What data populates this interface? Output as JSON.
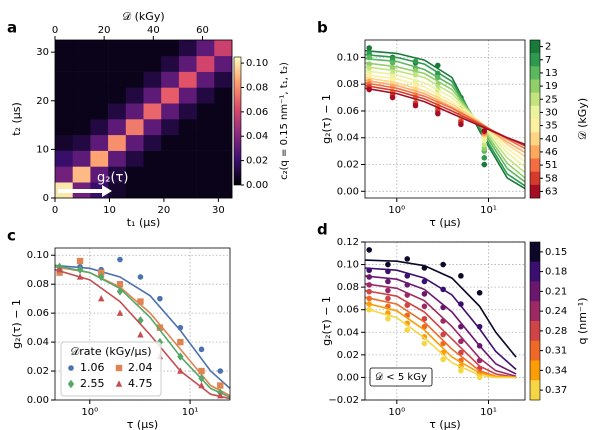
{
  "chart_data": [
    {
      "type": "heatmap",
      "panel_label": "a",
      "xlabel": "t₁ (μs)",
      "ylabel": "t₂ (μs)",
      "x2label": "𝒟 (kGy)",
      "clabel": "c₂(q = 0.15 nm⁻¹, t₁, t₂)",
      "annotation": "g₂(τ)",
      "xlim": [
        0,
        32.5
      ],
      "ylim": [
        0,
        32.5
      ],
      "xticks": [
        0,
        10,
        20,
        30
      ],
      "yticks": [
        0,
        10,
        20,
        30
      ],
      "x2lim": [
        0,
        72
      ],
      "x2ticks": [
        0,
        20,
        40,
        60
      ],
      "clim": [
        0,
        0.105
      ],
      "cticks": [
        {
          "value": 0,
          "label": "0.00"
        },
        0.02,
        0.04,
        0.06,
        0.08,
        {
          "value": 0.1,
          "label": "0.10"
        }
      ],
      "colormap": [
        "#000004",
        "#3b0f70",
        "#8c2981",
        "#de4968",
        "#fe9f6d",
        "#fcfdbf"
      ],
      "z": [
        [
          0.1,
          0.035,
          0.02,
          0.008,
          0.004,
          0.004,
          0.004,
          0.004,
          0.004,
          0.004
        ],
        [
          0.035,
          0.09,
          0.03,
          0.012,
          0.004,
          0.004,
          0.004,
          0.004,
          0.004,
          0.004
        ],
        [
          0.02,
          0.03,
          0.085,
          0.03,
          0.012,
          0.004,
          0.004,
          0.004,
          0.004,
          0.004
        ],
        [
          0.008,
          0.012,
          0.03,
          0.08,
          0.03,
          0.012,
          0.004,
          0.004,
          0.004,
          0.004
        ],
        [
          0.004,
          0.004,
          0.012,
          0.03,
          0.075,
          0.03,
          0.012,
          0.004,
          0.004,
          0.004
        ],
        [
          0.004,
          0.004,
          0.004,
          0.012,
          0.03,
          0.07,
          0.03,
          0.012,
          0.004,
          0.004
        ],
        [
          0.004,
          0.004,
          0.004,
          0.004,
          0.012,
          0.03,
          0.068,
          0.03,
          0.012,
          0.004
        ],
        [
          0.004,
          0.004,
          0.004,
          0.004,
          0.004,
          0.012,
          0.03,
          0.065,
          0.03,
          0.012
        ],
        [
          0.004,
          0.004,
          0.004,
          0.004,
          0.004,
          0.004,
          0.012,
          0.03,
          0.06,
          0.03
        ],
        [
          0.004,
          0.004,
          0.004,
          0.004,
          0.004,
          0.004,
          0.004,
          0.012,
          0.03,
          0.058
        ]
      ]
    },
    {
      "type": "scatter",
      "panel_label": "b",
      "xlabel": "τ (μs)",
      "ylabel": "g₂(τ) − 1",
      "clabel": "𝒟 (kGy)",
      "log_x": true,
      "grid": true,
      "xlim": [
        0.45,
        25
      ],
      "xticks": [
        {
          "value": 1,
          "label": "10⁰"
        },
        {
          "value": 10,
          "label": "10¹"
        }
      ],
      "ylim": [
        -0.005,
        0.113
      ],
      "yticks": [
        {
          "value": 0,
          "label": "0.00"
        },
        0.02,
        0.04,
        0.06,
        0.08,
        {
          "value": 0.1,
          "label": "0.10"
        }
      ],
      "x": [
        0.5,
        0.9,
        1.6,
        2.8,
        5,
        9
      ],
      "fit_x": [
        0.45,
        1,
        2,
        4,
        8,
        16,
        25
      ],
      "series": [
        {
          "name": "2",
          "color": "#1a7a3a",
          "values": [
            0.107,
            0.1,
            0.096,
            0.094,
            0.07,
            0.02
          ],
          "fit": [
            0.105,
            0.103,
            0.098,
            0.085,
            0.045,
            0.01,
            0.002
          ]
        },
        {
          "name": "7",
          "color": "#2e9a4f",
          "values": [
            0.103,
            0.098,
            0.097,
            0.088,
            0.06,
            0.025
          ],
          "fit": [
            0.102,
            0.1,
            0.095,
            0.082,
            0.047,
            0.013,
            0.004
          ]
        },
        {
          "name": "13",
          "color": "#5cb85c",
          "values": [
            0.1,
            0.096,
            0.092,
            0.085,
            0.058,
            0.03
          ],
          "fit": [
            0.099,
            0.097,
            0.091,
            0.079,
            0.049,
            0.017,
            0.007
          ]
        },
        {
          "name": "19",
          "color": "#92cf6a",
          "values": [
            0.095,
            0.092,
            0.09,
            0.08,
            0.062,
            0.032
          ],
          "fit": [
            0.096,
            0.093,
            0.088,
            0.076,
            0.05,
            0.021,
            0.01
          ]
        },
        {
          "name": "25",
          "color": "#c3e37f",
          "values": [
            0.092,
            0.088,
            0.087,
            0.076,
            0.06,
            0.035
          ],
          "fit": [
            0.093,
            0.09,
            0.085,
            0.073,
            0.051,
            0.025,
            0.014
          ]
        },
        {
          "name": "30",
          "color": "#e9f3a0",
          "values": [
            0.088,
            0.085,
            0.082,
            0.072,
            0.056,
            0.038
          ],
          "fit": [
            0.09,
            0.087,
            0.081,
            0.07,
            0.052,
            0.029,
            0.018
          ]
        },
        {
          "name": "35",
          "color": "#fdf0a0",
          "values": [
            0.086,
            0.083,
            0.078,
            0.07,
            0.055,
            0.04
          ],
          "fit": [
            0.087,
            0.084,
            0.078,
            0.067,
            0.052,
            0.032,
            0.022
          ]
        },
        {
          "name": "40",
          "color": "#fed583",
          "values": [
            0.083,
            0.08,
            0.076,
            0.066,
            0.055,
            0.042
          ],
          "fit": [
            0.085,
            0.081,
            0.075,
            0.065,
            0.052,
            0.035,
            0.026
          ]
        },
        {
          "name": "46",
          "color": "#fca95e",
          "values": [
            0.082,
            0.078,
            0.072,
            0.064,
            0.053,
            0.043
          ],
          "fit": [
            0.083,
            0.079,
            0.073,
            0.063,
            0.051,
            0.037,
            0.029
          ]
        },
        {
          "name": "51",
          "color": "#f26d41",
          "values": [
            0.08,
            0.074,
            0.07,
            0.062,
            0.052,
            0.044
          ],
          "fit": [
            0.081,
            0.077,
            0.071,
            0.062,
            0.051,
            0.039,
            0.032
          ]
        },
        {
          "name": "58",
          "color": "#d63a2c",
          "values": [
            0.078,
            0.072,
            0.066,
            0.06,
            0.052,
            0.045
          ],
          "fit": [
            0.079,
            0.075,
            0.069,
            0.06,
            0.05,
            0.04,
            0.034
          ]
        },
        {
          "name": "63",
          "color": "#a50f26",
          "values": [
            0.076,
            0.07,
            0.064,
            0.058,
            0.05,
            0.045
          ],
          "fit": [
            0.077,
            0.073,
            0.067,
            0.058,
            0.049,
            0.04,
            0.035
          ]
        }
      ]
    },
    {
      "type": "scatter",
      "panel_label": "c",
      "xlabel": "τ (μs)",
      "ylabel": "g₂(τ) − 1",
      "log_x": true,
      "grid": true,
      "legend": "lower left",
      "legend_title": "𝒟rate (kGy/μs)",
      "xlim": [
        0.45,
        25
      ],
      "xticks": [
        {
          "value": 1,
          "label": "10⁰"
        },
        {
          "value": 10,
          "label": "10¹"
        }
      ],
      "ylim": [
        0,
        0.105
      ],
      "yticks": [
        {
          "value": 0,
          "label": "0.00"
        },
        0.02,
        0.04,
        0.06,
        0.08,
        {
          "value": 0.1,
          "label": "0.10"
        }
      ],
      "x": [
        0.5,
        0.8,
        1.3,
        2,
        3.2,
        5,
        8,
        13,
        20
      ],
      "fit_x": [
        0.45,
        1,
        2,
        4,
        8,
        16,
        25
      ],
      "series": [
        {
          "name": "1.06",
          "color": "#4c72b0",
          "marker": "o",
          "values": [
            0.09,
            0.092,
            0.09,
            0.097,
            0.085,
            0.07,
            0.05,
            0.035,
            0.02
          ],
          "fit": [
            0.093,
            0.091,
            0.085,
            0.072,
            0.048,
            0.02,
            0.008
          ]
        },
        {
          "name": "2.04",
          "color": "#dd8452",
          "marker": "s",
          "values": [
            0.088,
            0.096,
            0.088,
            0.08,
            0.068,
            0.05,
            0.04,
            0.02,
            0.01
          ],
          "fit": [
            0.092,
            0.088,
            0.078,
            0.06,
            0.035,
            0.01,
            0.003
          ]
        },
        {
          "name": "2.55",
          "color": "#55a868",
          "marker": "D",
          "values": [
            0.092,
            0.09,
            0.085,
            0.075,
            0.055,
            0.04,
            0.03,
            0.015,
            0.005
          ],
          "fit": [
            0.093,
            0.088,
            0.077,
            0.057,
            0.03,
            0.008,
            0.002
          ]
        },
        {
          "name": "4.75",
          "color": "#c44e52",
          "marker": "^",
          "values": [
            0.09,
            0.085,
            0.07,
            0.06,
            0.045,
            0.03,
            0.02,
            0.01,
            0.003
          ],
          "fit": [
            0.09,
            0.083,
            0.068,
            0.045,
            0.02,
            0.004,
            0.001
          ]
        }
      ]
    },
    {
      "type": "scatter",
      "panel_label": "d",
      "xlabel": "τ (μs)",
      "ylabel": "g₂(τ) − 1",
      "clabel": "q (nm⁻¹)",
      "annotation": "𝒟 < 5 kGy",
      "log_x": true,
      "grid": true,
      "xlim": [
        0.45,
        25
      ],
      "xticks": [
        {
          "value": 1,
          "label": "10⁰"
        },
        {
          "value": 10,
          "label": "10¹"
        }
      ],
      "ylim": [
        -0.02,
        0.12
      ],
      "yticks": [
        {
          "value": -0.02,
          "label": "−0.02"
        },
        {
          "value": 0,
          "label": "0.00"
        },
        0.02,
        0.04,
        0.06,
        0.08,
        {
          "value": 0.1,
          "label": "0.10"
        },
        0.12
      ],
      "x": [
        0.5,
        0.8,
        1.3,
        2,
        3.2,
        5,
        8
      ],
      "fit_x": [
        0.45,
        1,
        2,
        4,
        8,
        12,
        20
      ],
      "series": [
        {
          "name": "0.15",
          "color": "#0d0829",
          "values": [
            0.113,
            0.1,
            0.105,
            0.097,
            0.1,
            0.09,
            0.075
          ],
          "fit": [
            0.104,
            0.103,
            0.099,
            0.088,
            0.063,
            0.04,
            0.018
          ]
        },
        {
          "name": "0.18",
          "color": "#3b0f6f",
          "values": [
            0.095,
            0.094,
            0.09,
            0.085,
            0.078,
            0.065,
            0.045
          ],
          "fit": [
            0.097,
            0.095,
            0.088,
            0.073,
            0.043,
            0.023,
            0.007
          ]
        },
        {
          "name": "0.21",
          "color": "#6a176e",
          "values": [
            0.089,
            0.085,
            0.082,
            0.074,
            0.062,
            0.045,
            0.028
          ],
          "fit": [
            0.09,
            0.087,
            0.078,
            0.058,
            0.028,
            0.012,
            0.003
          ]
        },
        {
          "name": "0.24",
          "color": "#9c2964",
          "values": [
            0.082,
            0.077,
            0.073,
            0.063,
            0.05,
            0.032,
            0.015
          ],
          "fit": [
            0.083,
            0.079,
            0.068,
            0.045,
            0.017,
            0.006,
            0.001
          ]
        },
        {
          "name": "0.28",
          "color": "#cf4446",
          "values": [
            0.076,
            0.07,
            0.064,
            0.052,
            0.038,
            0.022,
            0.008
          ],
          "fit": [
            0.077,
            0.072,
            0.058,
            0.034,
            0.01,
            0.003,
            0
          ]
        },
        {
          "name": "0.31",
          "color": "#ee6925",
          "values": [
            0.07,
            0.063,
            0.055,
            0.045,
            0.03,
            0.015,
            0.004
          ],
          "fit": [
            0.071,
            0.065,
            0.049,
            0.025,
            0.006,
            0.001,
            0
          ]
        },
        {
          "name": "0.34",
          "color": "#fb9d07",
          "values": [
            0.065,
            0.057,
            0.048,
            0.036,
            0.022,
            0.01,
            0.002
          ],
          "fit": [
            0.066,
            0.059,
            0.042,
            0.018,
            0.004,
            0.001,
            0
          ]
        },
        {
          "name": "0.37",
          "color": "#f6d645",
          "values": [
            0.06,
            0.052,
            0.042,
            0.03,
            0.016,
            0.006,
            0
          ],
          "fit": [
            0.061,
            0.053,
            0.035,
            0.013,
            0.002,
            0,
            0
          ]
        }
      ]
    }
  ]
}
